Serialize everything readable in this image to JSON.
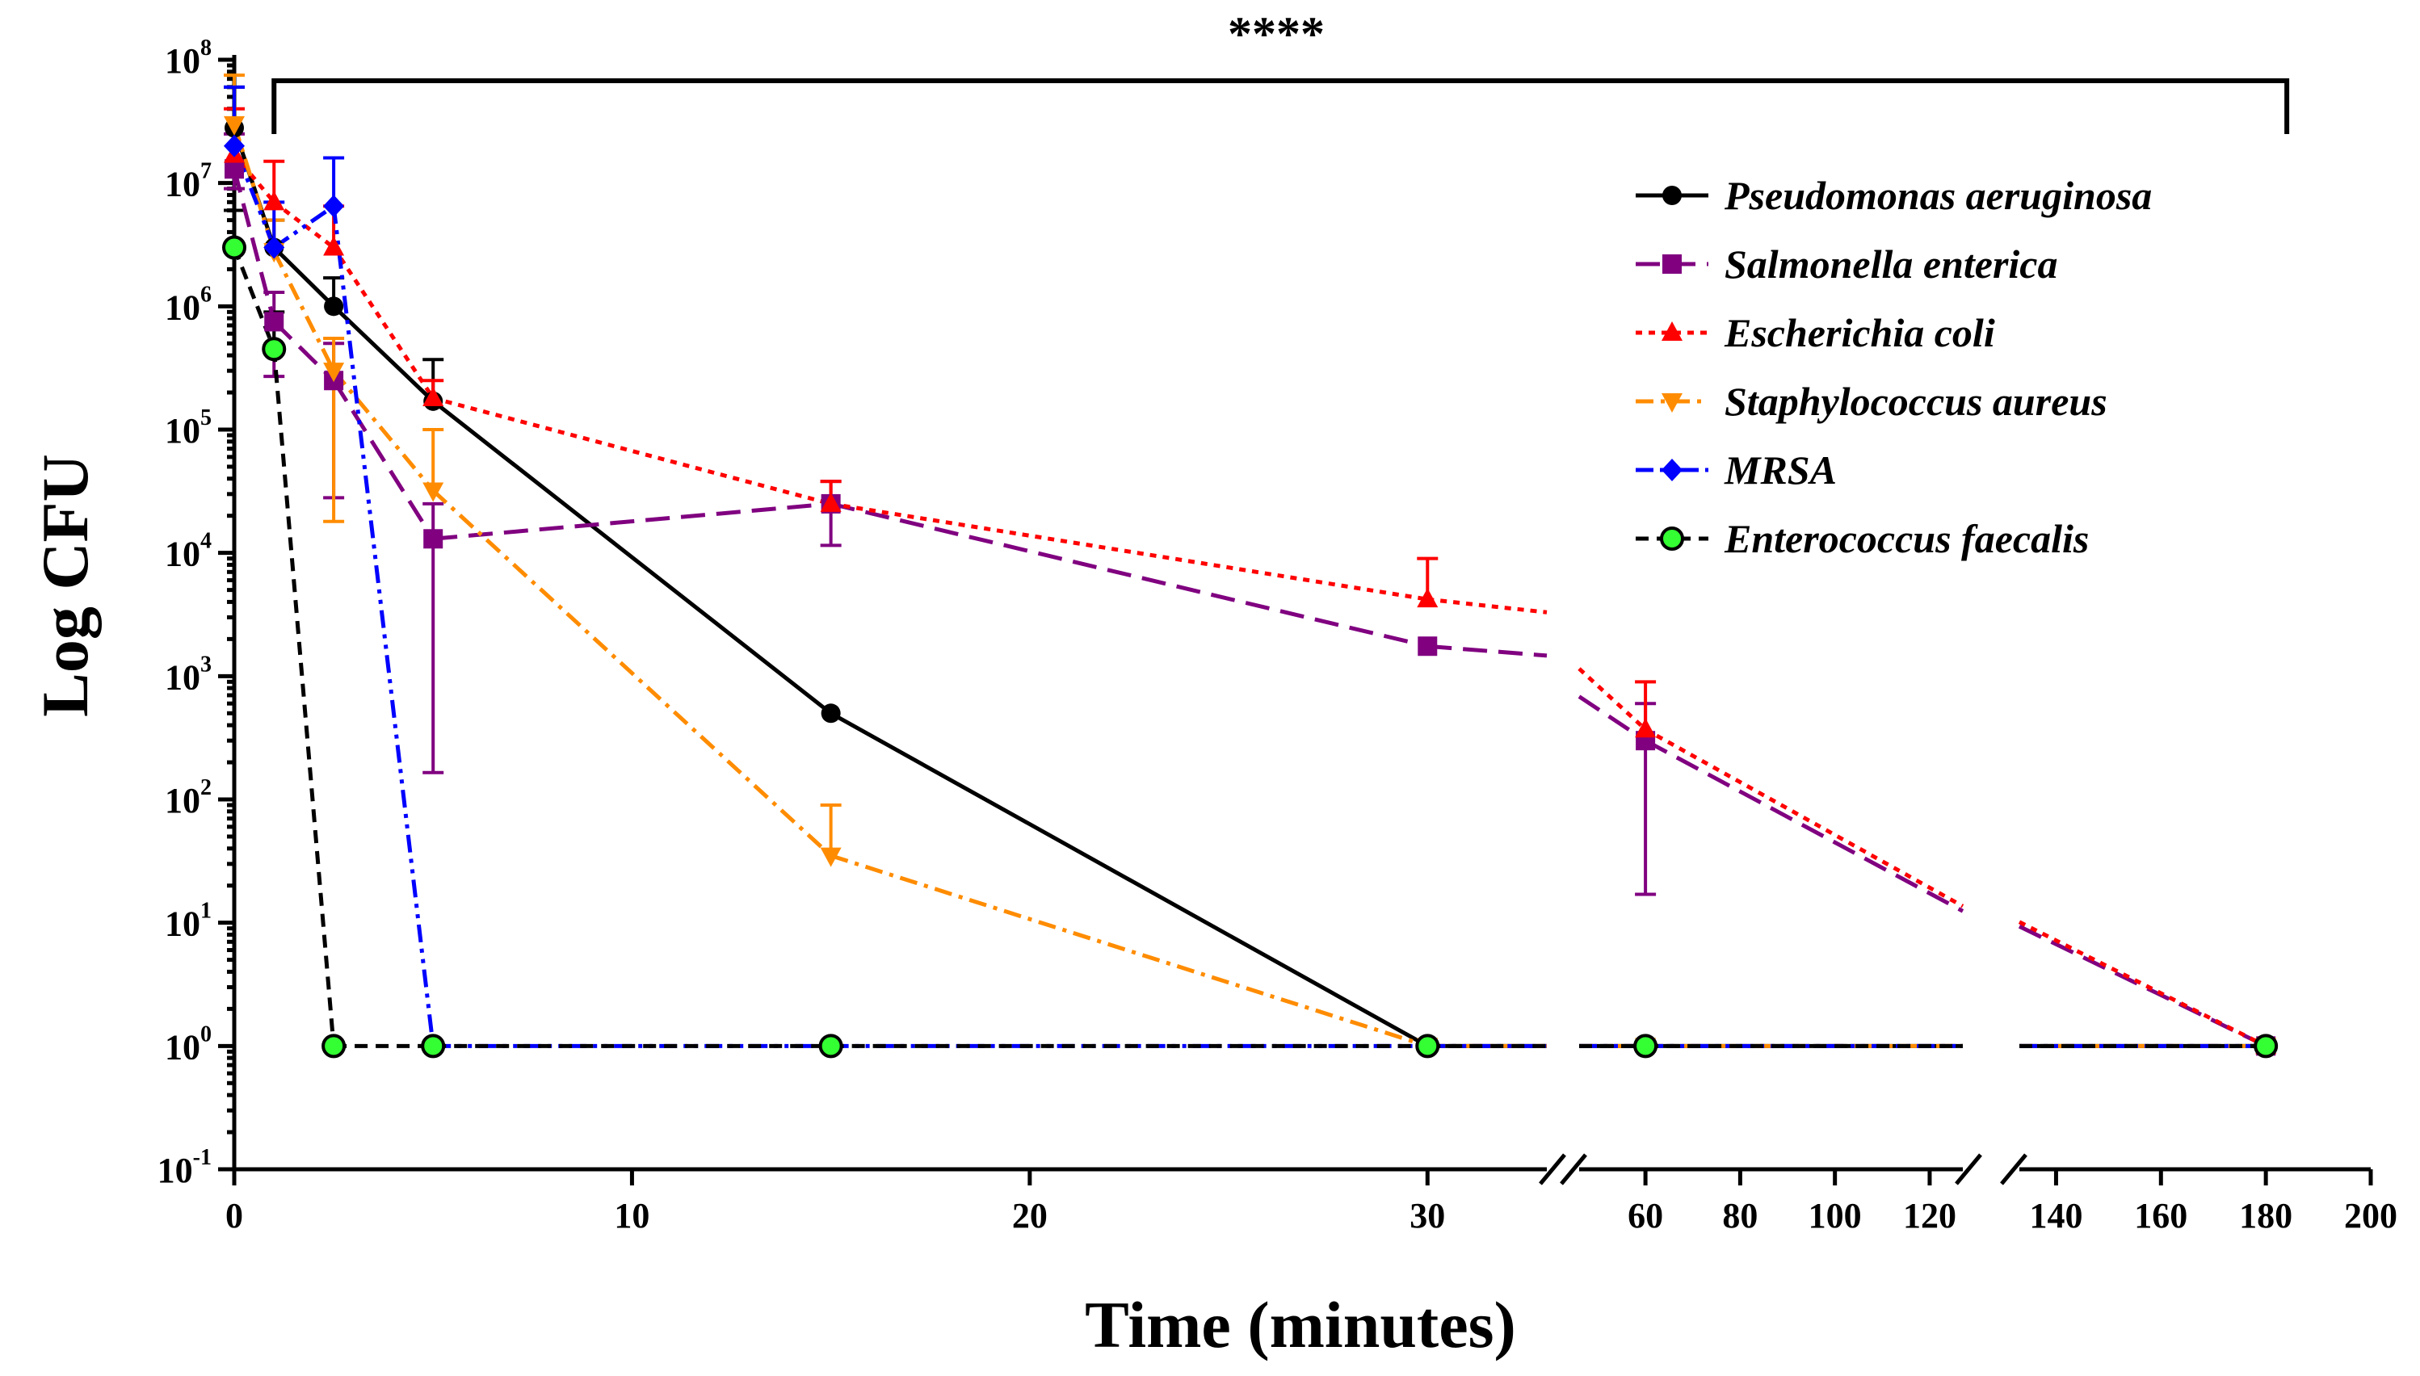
{
  "chart_data": {
    "type": "line",
    "title": "",
    "xlabel": "Time (minutes)",
    "ylabel": "Log CFU",
    "y_scale": "log",
    "ylim_exponents": [
      -1,
      8
    ],
    "x_axis_segments": [
      {
        "range": [
          0,
          33
        ],
        "ticks": [
          0,
          10,
          20,
          30
        ]
      },
      {
        "range": [
          46,
          127
        ],
        "ticks": [
          60,
          80,
          100,
          120
        ]
      },
      {
        "range": [
          133,
          200
        ],
        "ticks": [
          140,
          160,
          180,
          200
        ]
      }
    ],
    "y_ticks": [
      {
        "base": "10",
        "exp": "8",
        "value": 100000000
      },
      {
        "base": "10",
        "exp": "7",
        "value": 10000000
      },
      {
        "base": "10",
        "exp": "6",
        "value": 1000000
      },
      {
        "base": "10",
        "exp": "5",
        "value": 100000
      },
      {
        "base": "10",
        "exp": "4",
        "value": 10000
      },
      {
        "base": "10",
        "exp": "3",
        "value": 1000
      },
      {
        "base": "10",
        "exp": "2",
        "value": 100
      },
      {
        "base": "10",
        "exp": "1",
        "value": 10
      },
      {
        "base": "10",
        "exp": "0",
        "value": 1
      },
      {
        "base": "10",
        "exp": "-1",
        "value": 0.1
      }
    ],
    "x_tick_labels": [
      "0",
      "10",
      "20",
      "30",
      "60",
      "80",
      "100",
      "120",
      "140",
      "160",
      "180",
      "200"
    ],
    "significance": {
      "label": "****",
      "from_x": 1,
      "to_x": 184
    },
    "series": [
      {
        "name": "Pseudomonas aeruginosa",
        "color": "#000000",
        "dash": "solid",
        "marker": "circle",
        "points": [
          {
            "x": 0,
            "y": 28000000,
            "err": 60000000
          },
          {
            "x": 1,
            "y": 3000000,
            "err": 5000000
          },
          {
            "x": 2.5,
            "y": 1000000,
            "err": 1700000
          },
          {
            "x": 5,
            "y": 170000,
            "err": 370000
          },
          {
            "x": 15,
            "y": 500,
            "err": null
          },
          {
            "x": 30,
            "y": 1,
            "err": null
          },
          {
            "x": 60,
            "y": 1,
            "err": null
          },
          {
            "x": 180,
            "y": 1,
            "err": null
          }
        ]
      },
      {
        "name": "Salmonella enterica",
        "color": "#800080",
        "dash": "long-dash",
        "marker": "square",
        "points": [
          {
            "x": 0,
            "y": 13000000,
            "err": 25000000,
            "err_low": 9000000
          },
          {
            "x": 1,
            "y": 750000,
            "err": 1300000,
            "err_low": 270000
          },
          {
            "x": 2.5,
            "y": 250000,
            "err": 500000,
            "err_low": 28000
          },
          {
            "x": 5,
            "y": 13000,
            "err": 25000,
            "err_low": 165
          },
          {
            "x": 15,
            "y": 25000,
            "err": 38000,
            "err_low": 11500
          },
          {
            "x": 30,
            "y": 1750,
            "err": null
          },
          {
            "x": 60,
            "y": 300,
            "err": 600,
            "err_low": 17
          },
          {
            "x": 180,
            "y": 1,
            "err": null
          }
        ]
      },
      {
        "name": "Escherichia coli",
        "color": "#ff0000",
        "dash": "dotted",
        "marker": "triangle-up",
        "points": [
          {
            "x": 0,
            "y": 17000000,
            "err": 40000000
          },
          {
            "x": 1,
            "y": 7000000,
            "err": 15000000
          },
          {
            "x": 2.5,
            "y": 3000000,
            "err": 6500000
          },
          {
            "x": 5,
            "y": 180000,
            "err": 250000
          },
          {
            "x": 15,
            "y": 25000,
            "err": 38000
          },
          {
            "x": 30,
            "y": 4200,
            "err": 9000
          },
          {
            "x": 60,
            "y": 370,
            "err": 900
          },
          {
            "x": 180,
            "y": 1,
            "err": null
          }
        ]
      },
      {
        "name": "Staphylococcus aureus",
        "color": "#ff8c00",
        "dash": "dash-dot",
        "marker": "triangle-down",
        "points": [
          {
            "x": 0,
            "y": 30000000,
            "err": 75000000
          },
          {
            "x": 1,
            "y": 2800000,
            "err": 5000000
          },
          {
            "x": 2.5,
            "y": 300000,
            "err": 550000,
            "err_low": 18000
          },
          {
            "x": 5,
            "y": 32000,
            "err": 100000
          },
          {
            "x": 15,
            "y": 35,
            "err": 90
          },
          {
            "x": 30,
            "y": 1,
            "err": null
          },
          {
            "x": 60,
            "y": 1,
            "err": null
          },
          {
            "x": 180,
            "y": 1,
            "err": null
          }
        ]
      },
      {
        "name": "MRSA",
        "color": "#0000ff",
        "dash": "dash-dot-dot",
        "marker": "diamond",
        "points": [
          {
            "x": 0,
            "y": 20000000,
            "err": 60000000
          },
          {
            "x": 1,
            "y": 3000000,
            "err": 7000000
          },
          {
            "x": 2.5,
            "y": 6500000,
            "err": 16000000
          },
          {
            "x": 5,
            "y": 1,
            "err": null
          },
          {
            "x": 15,
            "y": 1,
            "err": null
          },
          {
            "x": 30,
            "y": 1,
            "err": null
          },
          {
            "x": 60,
            "y": 1,
            "err": null
          },
          {
            "x": 180,
            "y": 1,
            "err": null
          }
        ]
      },
      {
        "name": "Enterococcus faecalis",
        "color": "#000000",
        "marker_fill": "#33ff33",
        "dash": "dashed",
        "marker": "circle-open",
        "points": [
          {
            "x": 0,
            "y": 3000000,
            "err": 6000000
          },
          {
            "x": 1,
            "y": 450000,
            "err": 900000
          },
          {
            "x": 2.5,
            "y": 1,
            "err": null
          },
          {
            "x": 5,
            "y": 1,
            "err": null
          },
          {
            "x": 15,
            "y": 1,
            "err": null
          },
          {
            "x": 30,
            "y": 1,
            "err": null
          },
          {
            "x": 60,
            "y": 1,
            "err": null
          },
          {
            "x": 180,
            "y": 1,
            "err": null
          }
        ]
      }
    ],
    "legend_position": "top-right"
  }
}
